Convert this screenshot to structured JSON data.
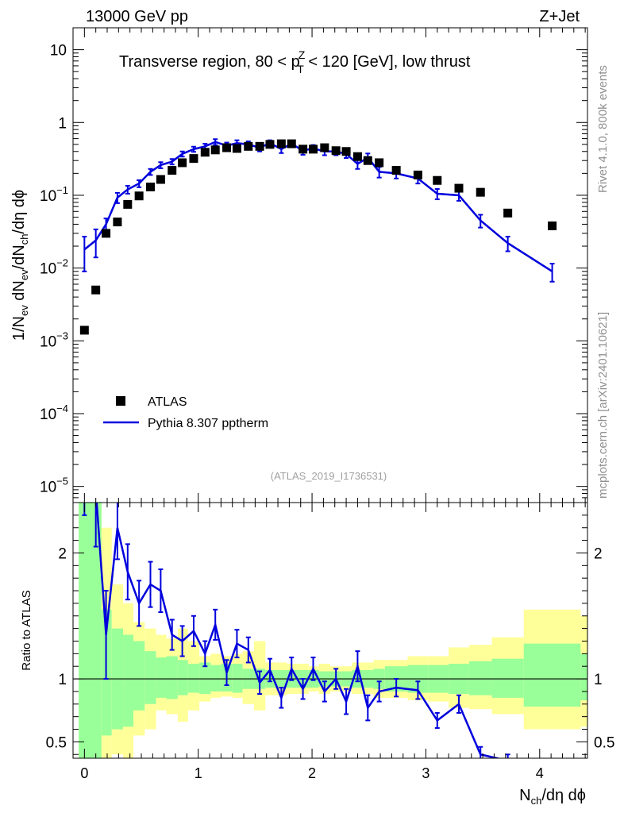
{
  "header": {
    "energy_label": "13000 GeV pp",
    "process_label": "Z+Jet"
  },
  "side_labels": {
    "rivet": "Rivet 4.1.0,  800k events",
    "source": "mcplots.cern.ch [arXiv:2401.10621]"
  },
  "chart_data": {
    "type": "line",
    "title_parts": {
      "pre": "Transverse region, 80 < p",
      "sup": "Z",
      "sub": "T",
      "post": " < 120 [GeV], low thrust"
    },
    "analysis_id": "(ATLAS_2019_I1736531)",
    "xlabel": {
      "n": "N",
      "sub": "ch",
      "rest": "/dη dϕ"
    },
    "ylabel": {
      "p1": "1/N",
      "s1": "ev",
      "p2": " dN",
      "s2": "ev",
      "p3": "/dN",
      "s3": "ch",
      "p4": "/dη dϕ"
    },
    "ratio_ylabel": "Ratio to ATLAS",
    "xlim": [
      -0.1,
      4.42
    ],
    "ylim": [
      6e-06,
      20
    ],
    "ratio_ylim": [
      0.37,
      2.4
    ],
    "x_ticks": [
      {
        "v": 0,
        "label": "0"
      },
      {
        "v": 1,
        "label": "1"
      },
      {
        "v": 2,
        "label": "2"
      },
      {
        "v": 3,
        "label": "3"
      },
      {
        "v": 4,
        "label": "4"
      }
    ],
    "y_ticks": [
      {
        "v": 10,
        "base": "10",
        "exp": ""
      },
      {
        "v": 1,
        "base": "1",
        "exp": ""
      },
      {
        "v": 0.1,
        "base": "10",
        "exp": "−1"
      },
      {
        "v": 0.01,
        "base": "10",
        "exp": "−2"
      },
      {
        "v": 0.001,
        "base": "10",
        "exp": "−3"
      },
      {
        "v": 0.0001,
        "base": "10",
        "exp": "−4"
      },
      {
        "v": 1e-05,
        "base": "10",
        "exp": "−5"
      }
    ],
    "ratio_ticks": [
      {
        "v": 0.5,
        "label": "0.5"
      },
      {
        "v": 1,
        "label": "1"
      },
      {
        "v": 2,
        "label": "2"
      }
    ],
    "legend": [
      {
        "label": "ATLAS",
        "marker": "square",
        "color": "#000000"
      },
      {
        "label": "Pythia 8.307 pptherm",
        "marker": "line",
        "color": "#0000dd"
      }
    ],
    "atlas": {
      "x": [
        0.0,
        0.1,
        0.19,
        0.29,
        0.38,
        0.48,
        0.58,
        0.67,
        0.77,
        0.86,
        0.96,
        1.06,
        1.15,
        1.25,
        1.34,
        1.44,
        1.54,
        1.63,
        1.73,
        1.82,
        1.92,
        2.01,
        2.11,
        2.21,
        2.3,
        2.4,
        2.49,
        2.59,
        2.74,
        2.93,
        3.1,
        3.29,
        3.48,
        3.72,
        4.11
      ],
      "y": [
        0.0014,
        0.005,
        0.03,
        0.043,
        0.075,
        0.098,
        0.13,
        0.165,
        0.22,
        0.28,
        0.32,
        0.39,
        0.42,
        0.45,
        0.44,
        0.47,
        0.47,
        0.5,
        0.51,
        0.51,
        0.43,
        0.43,
        0.45,
        0.41,
        0.4,
        0.34,
        0.3,
        0.28,
        0.22,
        0.19,
        0.16,
        0.125,
        0.11,
        0.057,
        0.038
      ]
    },
    "mc": {
      "x": [
        0.0,
        0.1,
        0.19,
        0.29,
        0.38,
        0.48,
        0.58,
        0.67,
        0.77,
        0.86,
        0.96,
        1.06,
        1.15,
        1.25,
        1.34,
        1.44,
        1.54,
        1.63,
        1.73,
        1.82,
        1.92,
        2.01,
        2.11,
        2.21,
        2.3,
        2.4,
        2.49,
        2.59,
        2.74,
        2.93,
        3.1,
        3.29,
        3.48,
        3.72,
        4.11
      ],
      "y": [
        0.018,
        0.024,
        0.04,
        0.093,
        0.12,
        0.145,
        0.21,
        0.26,
        0.29,
        0.37,
        0.43,
        0.47,
        0.54,
        0.48,
        0.52,
        0.5,
        0.45,
        0.52,
        0.43,
        0.51,
        0.41,
        0.44,
        0.4,
        0.4,
        0.37,
        0.27,
        0.33,
        0.21,
        0.2,
        0.17,
        0.105,
        0.1,
        0.045,
        0.022,
        0.009
      ],
      "yerr": [
        0.009,
        0.01,
        0.008,
        0.015,
        0.015,
        0.016,
        0.02,
        0.025,
        0.025,
        0.03,
        0.035,
        0.04,
        0.05,
        0.05,
        0.05,
        0.05,
        0.05,
        0.05,
        0.05,
        0.05,
        0.05,
        0.05,
        0.045,
        0.045,
        0.045,
        0.04,
        0.045,
        0.035,
        0.03,
        0.025,
        0.017,
        0.016,
        0.009,
        0.005,
        0.0025
      ]
    },
    "ratio": {
      "y": [
        2.8,
        2.5,
        1.35,
        2.2,
        1.85,
        1.6,
        1.75,
        1.7,
        1.35,
        1.3,
        1.38,
        1.2,
        1.43,
        1.05,
        1.28,
        1.23,
        0.97,
        1.07,
        0.85,
        1.08,
        0.92,
        1.08,
        0.9,
        1.0,
        0.82,
        1.1,
        0.77,
        0.9,
        0.93,
        0.91,
        0.67,
        0.8,
        0.4,
        0.35,
        0.3
      ],
      "yerr": [
        0.5,
        0.45,
        0.35,
        0.25,
        0.22,
        0.18,
        0.18,
        0.17,
        0.12,
        0.12,
        0.12,
        0.1,
        0.12,
        0.1,
        0.11,
        0.1,
        0.09,
        0.09,
        0.08,
        0.09,
        0.08,
        0.09,
        0.08,
        0.08,
        0.1,
        0.12,
        0.1,
        0.08,
        0.07,
        0.07,
        0.06,
        0.07,
        0.06,
        0.05,
        0.05
      ]
    },
    "bands": {
      "edges": [
        -0.05,
        0.15,
        0.24,
        0.34,
        0.43,
        0.53,
        0.63,
        0.72,
        0.82,
        0.91,
        1.01,
        1.11,
        1.2,
        1.3,
        1.39,
        1.49,
        1.59,
        1.68,
        1.78,
        1.87,
        1.97,
        2.06,
        2.16,
        2.26,
        2.35,
        2.45,
        2.54,
        2.64,
        2.84,
        3.02,
        3.2,
        3.38,
        3.58,
        3.86,
        4.36
      ],
      "green_lo": [
        0.3,
        0.55,
        0.6,
        0.62,
        0.75,
        0.8,
        0.85,
        0.84,
        0.87,
        0.89,
        0.88,
        0.9,
        0.9,
        0.89,
        0.92,
        0.92,
        0.93,
        0.93,
        0.93,
        0.93,
        0.93,
        0.94,
        0.94,
        0.94,
        0.93,
        0.93,
        0.92,
        0.9,
        0.89,
        0.89,
        0.88,
        0.87,
        0.85,
        0.78,
        0.83
      ],
      "green_hi": [
        3.0,
        1.55,
        1.4,
        1.35,
        1.3,
        1.22,
        1.17,
        1.18,
        1.15,
        1.12,
        1.13,
        1.11,
        1.12,
        1.12,
        1.08,
        1.08,
        1.07,
        1.07,
        1.07,
        1.07,
        1.07,
        1.06,
        1.06,
        1.06,
        1.07,
        1.07,
        1.08,
        1.1,
        1.11,
        1.11,
        1.12,
        1.14,
        1.16,
        1.28,
        1.2
      ],
      "yellow_lo": [
        0.3,
        0.3,
        0.4,
        0.37,
        0.55,
        0.6,
        0.75,
        0.72,
        0.66,
        0.75,
        0.82,
        0.85,
        0.86,
        0.85,
        0.8,
        0.75,
        0.87,
        0.87,
        0.88,
        0.88,
        0.9,
        0.88,
        0.9,
        0.9,
        0.88,
        0.88,
        0.85,
        0.85,
        0.83,
        0.82,
        0.77,
        0.76,
        0.72,
        0.6,
        0.62
      ],
      "yellow_hi": [
        3.0,
        2.2,
        1.75,
        1.6,
        1.45,
        1.4,
        1.35,
        1.32,
        1.4,
        1.3,
        1.18,
        1.2,
        1.18,
        1.2,
        1.22,
        1.3,
        1.13,
        1.13,
        1.12,
        1.12,
        1.1,
        1.12,
        1.1,
        1.1,
        1.13,
        1.13,
        1.15,
        1.15,
        1.18,
        1.18,
        1.25,
        1.27,
        1.33,
        1.55,
        1.5
      ]
    }
  },
  "colors": {
    "mc": "#0000dd",
    "data": "#000000",
    "green": "#99ff99",
    "yellow": "#ffff99",
    "axis": "#000000"
  }
}
